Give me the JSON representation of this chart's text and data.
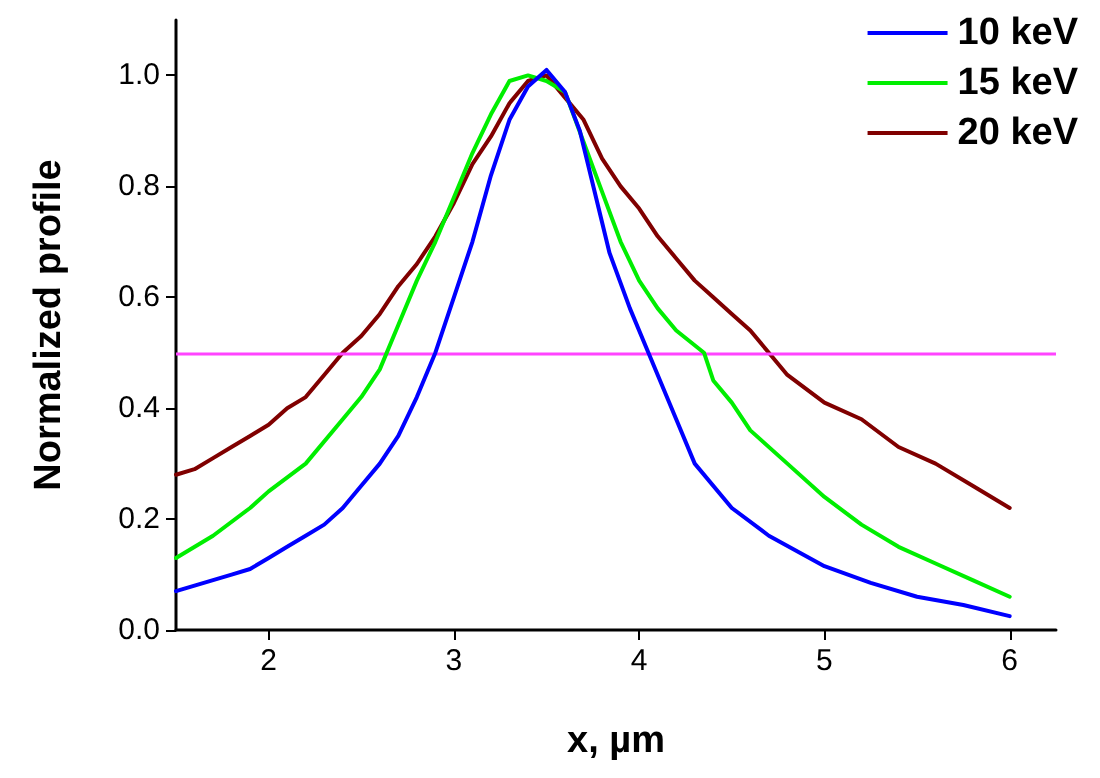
{
  "chart_data": {
    "type": "line",
    "xlabel": "x, µm",
    "ylabel": "Normalized profile",
    "xlim": [
      1.5,
      6.25
    ],
    "ylim": [
      0,
      1.1
    ],
    "xticks": [
      2,
      3,
      4,
      5,
      6
    ],
    "yticks": [
      {
        "value": 0,
        "label": "0.0"
      },
      {
        "value": 0.2,
        "label": "0.2"
      },
      {
        "value": 0.4,
        "label": "0.4"
      },
      {
        "value": 0.6,
        "label": "0.6"
      },
      {
        "value": 0.8,
        "label": "0.8"
      },
      {
        "value": 1,
        "label": "1.0"
      }
    ],
    "grid": false,
    "legend": "top right",
    "marker": "none",
    "line_style": "solid",
    "ref_lines": [
      {
        "axis": "y",
        "value": 0.5,
        "color": "#ff44ff"
      }
    ],
    "series": [
      {
        "name": "10 keV",
        "color": "#0000ff",
        "x": [
          1.5,
          1.6,
          1.7,
          1.8,
          1.9,
          2.0,
          2.1,
          2.2,
          2.3,
          2.4,
          2.5,
          2.6,
          2.7,
          2.8,
          2.9,
          3.0,
          3.1,
          3.2,
          3.3,
          3.4,
          3.5,
          3.6,
          3.68,
          3.84,
          3.95,
          4.05,
          4.2,
          4.3,
          4.5,
          4.7,
          5.0,
          5.25,
          5.5,
          5.75,
          6.0
        ],
        "values": [
          0.07,
          0.08,
          0.09,
          0.1,
          0.11,
          0.13,
          0.15,
          0.17,
          0.19,
          0.22,
          0.26,
          0.3,
          0.35,
          0.42,
          0.5,
          0.6,
          0.7,
          0.82,
          0.92,
          0.98,
          1.01,
          0.97,
          0.9,
          0.68,
          0.58,
          0.5,
          0.38,
          0.3,
          0.22,
          0.17,
          0.115,
          0.085,
          0.06,
          0.045,
          0.025
        ]
      },
      {
        "name": "15 keV",
        "color": "#00ee00",
        "x": [
          1.5,
          1.7,
          1.9,
          2.0,
          2.2,
          2.4,
          2.5,
          2.6,
          2.7,
          2.8,
          2.9,
          3.0,
          3.1,
          3.2,
          3.3,
          3.4,
          3.5,
          3.6,
          3.7,
          3.8,
          3.9,
          4.0,
          4.1,
          4.2,
          4.35,
          4.4,
          4.5,
          4.6,
          4.8,
          5.0,
          5.2,
          5.4,
          5.6,
          5.8,
          6.0
        ],
        "values": [
          0.13,
          0.17,
          0.22,
          0.25,
          0.3,
          0.38,
          0.42,
          0.47,
          0.55,
          0.63,
          0.7,
          0.78,
          0.86,
          0.93,
          0.99,
          1.0,
          0.99,
          0.97,
          0.88,
          0.79,
          0.7,
          0.63,
          0.58,
          0.54,
          0.5,
          0.45,
          0.41,
          0.36,
          0.3,
          0.24,
          0.19,
          0.15,
          0.12,
          0.09,
          0.06
        ]
      },
      {
        "name": "20 keV",
        "color": "#800000",
        "x": [
          1.5,
          1.6,
          1.7,
          1.8,
          1.9,
          2.0,
          2.1,
          2.2,
          2.3,
          2.4,
          2.5,
          2.6,
          2.7,
          2.8,
          2.9,
          3.0,
          3.1,
          3.2,
          3.3,
          3.4,
          3.5,
          3.6,
          3.7,
          3.8,
          3.9,
          4.0,
          4.1,
          4.2,
          4.3,
          4.4,
          4.5,
          4.6,
          4.7,
          4.8,
          5.0,
          5.2,
          5.4,
          5.6,
          5.8,
          6.0
        ],
        "values": [
          0.28,
          0.29,
          0.31,
          0.33,
          0.35,
          0.37,
          0.4,
          0.42,
          0.46,
          0.5,
          0.53,
          0.57,
          0.62,
          0.66,
          0.71,
          0.77,
          0.84,
          0.89,
          0.95,
          0.99,
          1.0,
          0.96,
          0.92,
          0.85,
          0.8,
          0.76,
          0.71,
          0.67,
          0.63,
          0.6,
          0.57,
          0.54,
          0.5,
          0.46,
          0.41,
          0.38,
          0.33,
          0.3,
          0.26,
          0.22
        ]
      }
    ]
  }
}
